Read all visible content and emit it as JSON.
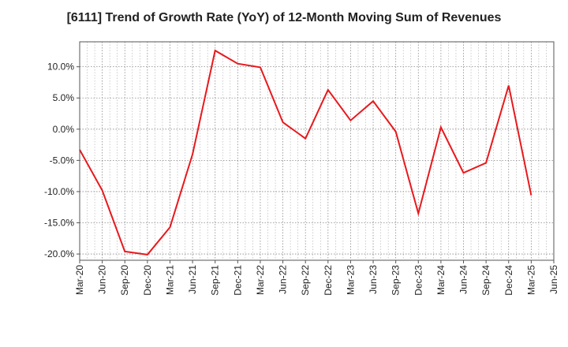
{
  "chart_data": {
    "type": "line",
    "title": "[6111]  Trend of Growth Rate (YoY) of 12-Month Moving Sum of Revenues",
    "xlabel": "",
    "ylabel": "",
    "x_ticks": [
      "Mar-20",
      "Jun-20",
      "Sep-20",
      "Dec-20",
      "Mar-21",
      "Jun-21",
      "Sep-21",
      "Dec-21",
      "Mar-22",
      "Jun-22",
      "Sep-22",
      "Dec-22",
      "Mar-23",
      "Jun-23",
      "Sep-23",
      "Dec-23",
      "Mar-24",
      "Jun-24",
      "Sep-24",
      "Dec-24",
      "Mar-25",
      "Jun-25"
    ],
    "y_ticks": [
      10,
      5,
      0,
      -5,
      -10,
      -15,
      -20
    ],
    "y_tick_labels": [
      "10.0%",
      "5.0%",
      "0.0%",
      "-5.0%",
      "-10.0%",
      "-15.0%",
      "-20.0%"
    ],
    "ylim": [
      -21,
      14
    ],
    "grid": true,
    "series": [
      {
        "color": "#e8191d",
        "x": [
          "Mar-20",
          "Jun-20",
          "Sep-20",
          "Dec-20",
          "Mar-21",
          "Jun-21",
          "Sep-21",
          "Dec-21",
          "Mar-22",
          "Jun-22",
          "Sep-22",
          "Dec-22",
          "Mar-23",
          "Jun-23",
          "Sep-23",
          "Dec-23",
          "Mar-24",
          "Jun-24",
          "Sep-24",
          "Dec-24",
          "Mar-25"
        ],
        "values": [
          -3.3,
          -9.8,
          -19.6,
          -20.1,
          -15.7,
          -4.0,
          12.6,
          10.5,
          9.9,
          1.1,
          -1.5,
          6.3,
          1.4,
          4.5,
          -0.4,
          -13.5,
          0.3,
          -7.0,
          -5.4,
          7.0,
          -10.6
        ]
      }
    ]
  }
}
